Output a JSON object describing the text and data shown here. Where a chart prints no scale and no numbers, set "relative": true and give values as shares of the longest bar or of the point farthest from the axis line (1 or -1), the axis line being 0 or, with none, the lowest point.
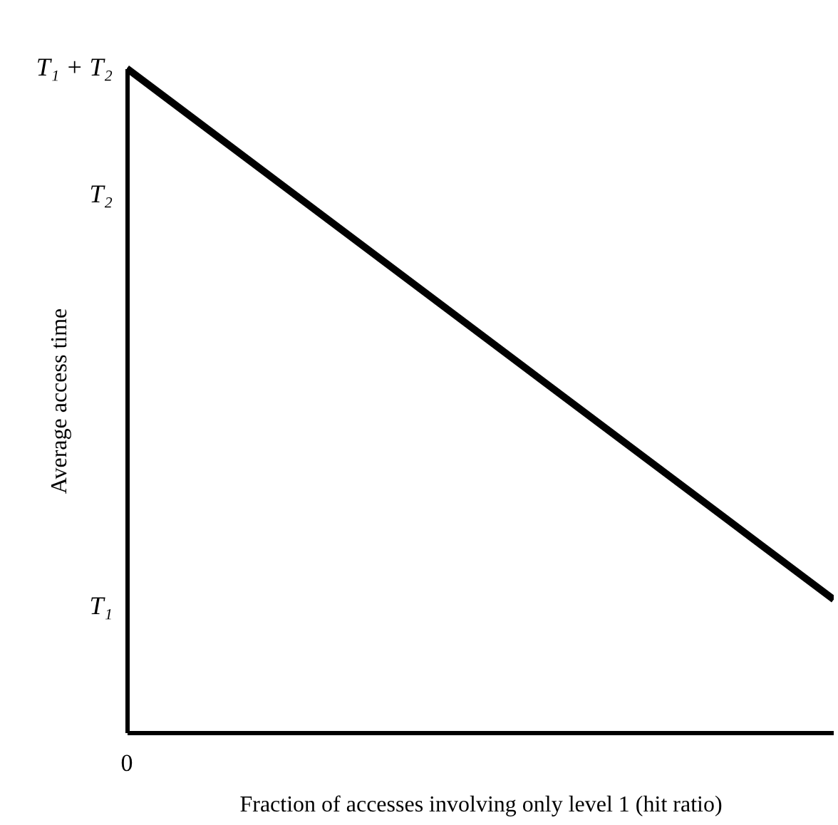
{
  "chart_data": {
    "type": "line",
    "xlabel": "Fraction of accesses involving only level 1 (hit ratio)",
    "ylabel": "Average access time",
    "relative": true,
    "categories": [
      null,
      null
    ],
    "series": [
      {
        "color": "#000000",
        "values": [
          1,
          0.2
        ]
      }
    ],
    "annotations": [
      "T₁ + T₂",
      "T₂",
      "T₁",
      "0"
    ],
    "grid": false,
    "marker": "none",
    "line_style": "solid"
  }
}
